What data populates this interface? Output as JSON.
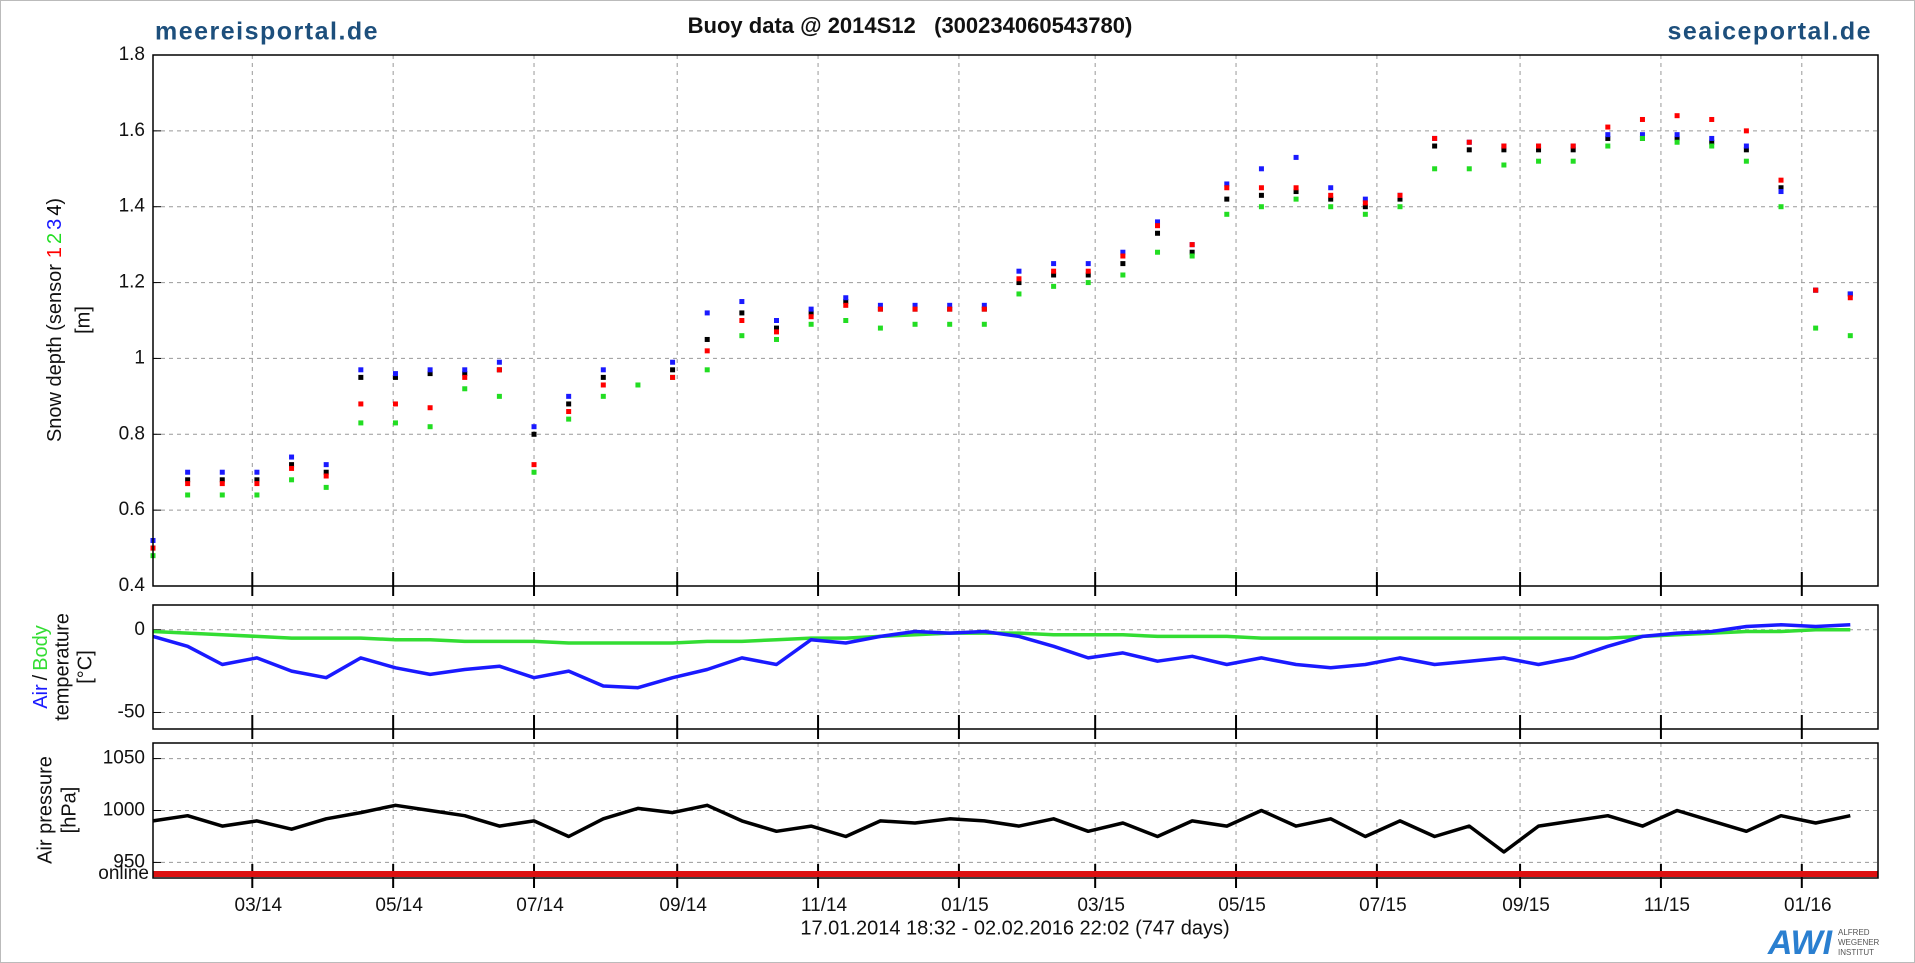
{
  "header": {
    "left_site": "meereisportal.de",
    "right_site": "seaiceportal.de",
    "title": "Buoy data @ 2014S12   (300234060543780)"
  },
  "chart_data": [
    {
      "type": "scatter",
      "ylabel": "Snow depth (sensor",
      "ylabel_close": ")",
      "yunit": "[m]",
      "x": [
        0,
        15,
        30,
        45,
        60,
        75,
        90,
        105,
        120,
        135,
        150,
        165,
        180,
        195,
        210,
        225,
        240,
        255,
        270,
        285,
        300,
        315,
        330,
        345,
        360,
        375,
        390,
        405,
        420,
        435,
        450,
        465,
        480,
        495,
        510,
        525,
        540,
        555,
        570,
        585,
        600,
        615,
        630,
        645,
        660,
        675,
        690,
        705,
        720,
        735
      ],
      "xlim": [
        0,
        747
      ],
      "xticks": [
        43,
        104,
        165,
        227,
        288,
        349,
        408,
        469,
        530,
        592,
        653,
        714
      ],
      "ylim": [
        0.4,
        1.8
      ],
      "yticks": [
        0.4,
        0.6,
        0.8,
        1,
        1.2,
        1.4,
        1.6,
        1.8
      ],
      "grid": true,
      "series": [
        {
          "name": "1",
          "color": "#ff0000",
          "values": [
            0.5,
            0.67,
            0.67,
            0.67,
            0.71,
            0.69,
            0.88,
            0.88,
            0.87,
            0.95,
            0.97,
            0.72,
            0.86,
            0.93,
            null,
            0.95,
            1.02,
            1.1,
            1.07,
            1.11,
            1.14,
            1.13,
            1.13,
            1.13,
            1.13,
            1.21,
            1.23,
            1.23,
            1.27,
            1.35,
            1.3,
            1.45,
            1.45,
            1.45,
            1.43,
            1.41,
            1.43,
            1.58,
            1.57,
            1.56,
            1.56,
            1.56,
            1.61,
            1.63,
            1.64,
            1.63,
            1.6,
            1.47,
            1.18,
            1.16
          ]
        },
        {
          "name": "2",
          "color": "#22dd22",
          "values": [
            0.48,
            0.64,
            0.64,
            0.64,
            0.68,
            0.66,
            0.83,
            0.83,
            0.82,
            0.92,
            0.9,
            0.7,
            0.84,
            0.9,
            0.93,
            0.95,
            0.97,
            1.06,
            1.05,
            1.09,
            1.1,
            1.08,
            1.09,
            1.09,
            1.09,
            1.17,
            1.19,
            1.2,
            1.22,
            1.28,
            1.27,
            1.38,
            1.4,
            1.42,
            1.4,
            1.38,
            1.4,
            1.5,
            1.5,
            1.51,
            1.52,
            1.52,
            1.56,
            1.58,
            1.57,
            1.56,
            1.52,
            1.4,
            1.08,
            1.06
          ]
        },
        {
          "name": "3",
          "color": "#1a1aff",
          "values": [
            0.52,
            0.7,
            0.7,
            0.7,
            0.74,
            0.72,
            0.97,
            0.96,
            0.97,
            0.97,
            0.99,
            0.82,
            0.9,
            0.97,
            null,
            0.99,
            1.12,
            1.15,
            1.1,
            1.13,
            1.16,
            1.14,
            1.14,
            1.14,
            1.14,
            1.23,
            1.25,
            1.25,
            1.28,
            1.36,
            1.3,
            1.46,
            1.5,
            1.53,
            1.45,
            1.42,
            1.43,
            1.58,
            1.57,
            1.56,
            1.56,
            1.56,
            1.59,
            1.59,
            1.59,
            1.58,
            1.56,
            1.44,
            1.18,
            1.17
          ]
        },
        {
          "name": "4",
          "color": "#000000",
          "values": [
            0.5,
            0.68,
            0.68,
            0.68,
            0.72,
            0.7,
            0.95,
            0.95,
            0.96,
            0.96,
            0.97,
            0.8,
            0.88,
            0.95,
            null,
            0.97,
            1.05,
            1.12,
            1.08,
            1.12,
            1.15,
            1.13,
            1.13,
            1.13,
            1.13,
            1.2,
            1.22,
            1.22,
            1.25,
            1.33,
            1.28,
            1.42,
            1.43,
            1.44,
            1.42,
            1.4,
            1.42,
            1.56,
            1.55,
            1.55,
            1.55,
            1.55,
            1.58,
            1.58,
            1.58,
            1.57,
            1.55,
            1.45,
            1.18,
            1.17
          ]
        }
      ]
    },
    {
      "type": "line",
      "ylabel": "temperature",
      "yunit": "[°C]",
      "separator": "/",
      "x": [
        0,
        15,
        30,
        45,
        60,
        75,
        90,
        105,
        120,
        135,
        150,
        165,
        180,
        195,
        210,
        225,
        240,
        255,
        270,
        285,
        300,
        315,
        330,
        345,
        360,
        375,
        390,
        405,
        420,
        435,
        450,
        465,
        480,
        495,
        510,
        525,
        540,
        555,
        570,
        585,
        600,
        615,
        630,
        645,
        660,
        675,
        690,
        705,
        720,
        735
      ],
      "xlim": [
        0,
        747
      ],
      "xticks": [
        43,
        104,
        165,
        227,
        288,
        349,
        408,
        469,
        530,
        592,
        653,
        714
      ],
      "ylim": [
        -60,
        15
      ],
      "yticks": [
        -50,
        0
      ],
      "grid": true,
      "series": [
        {
          "name": "Air",
          "color": "#1a1aff",
          "values": [
            -4,
            -10,
            -21,
            -17,
            -25,
            -29,
            -17,
            -23,
            -27,
            -24,
            -22,
            -29,
            -25,
            -34,
            -35,
            -29,
            -24,
            -17,
            -21,
            -6,
            -8,
            -4,
            -1,
            -2,
            -1,
            -4,
            -10,
            -17,
            -14,
            -19,
            -16,
            -21,
            -17,
            -21,
            -23,
            -21,
            -17,
            -21,
            -19,
            -17,
            -21,
            -17,
            -10,
            -4,
            -2,
            -1,
            2,
            3,
            2,
            3
          ]
        },
        {
          "name": "Body",
          "color": "#33dd33",
          "values": [
            -1,
            -2,
            -3,
            -4,
            -5,
            -5,
            -5,
            -6,
            -6,
            -7,
            -7,
            -7,
            -8,
            -8,
            -8,
            -8,
            -7,
            -7,
            -6,
            -5,
            -5,
            -4,
            -3,
            -2,
            -2,
            -2,
            -3,
            -3,
            -3,
            -4,
            -4,
            -4,
            -5,
            -5,
            -5,
            -5,
            -5,
            -5,
            -5,
            -5,
            -5,
            -5,
            -5,
            -4,
            -3,
            -2,
            -1,
            -1,
            0,
            0
          ]
        }
      ]
    },
    {
      "type": "line",
      "ylabel": "Air pressure",
      "yunit": "[hPa]",
      "x": [
        0,
        15,
        30,
        45,
        60,
        75,
        90,
        105,
        120,
        135,
        150,
        165,
        180,
        195,
        210,
        225,
        240,
        255,
        270,
        285,
        300,
        315,
        330,
        345,
        360,
        375,
        390,
        405,
        420,
        435,
        450,
        465,
        480,
        495,
        510,
        525,
        540,
        555,
        570,
        585,
        600,
        615,
        630,
        645,
        660,
        675,
        690,
        705,
        720,
        735
      ],
      "xlim": [
        0,
        747
      ],
      "xticks": [
        {
          "value": 43,
          "label": "03/14"
        },
        {
          "value": 104,
          "label": "05/14"
        },
        {
          "value": 165,
          "label": "07/14"
        },
        {
          "value": 227,
          "label": "09/14"
        },
        {
          "value": 288,
          "label": "11/14"
        },
        {
          "value": 349,
          "label": "01/15"
        },
        {
          "value": 408,
          "label": "03/15"
        },
        {
          "value": 469,
          "label": "05/15"
        },
        {
          "value": 530,
          "label": "07/15"
        },
        {
          "value": 592,
          "label": "09/15"
        },
        {
          "value": 653,
          "label": "11/15"
        },
        {
          "value": 714,
          "label": "01/16"
        }
      ],
      "ylim": [
        935,
        1065
      ],
      "yticks": [
        950,
        1000,
        1050
      ],
      "grid": true,
      "status": {
        "label": "online",
        "color": "#dd1111"
      },
      "series": [
        {
          "name": "Air pressure",
          "color": "#000000",
          "values": [
            990,
            995,
            985,
            990,
            982,
            992,
            998,
            1005,
            1000,
            995,
            985,
            990,
            975,
            992,
            1002,
            998,
            1005,
            990,
            980,
            985,
            975,
            990,
            988,
            992,
            990,
            985,
            992,
            980,
            988,
            975,
            990,
            985,
            1000,
            985,
            992,
            975,
            990,
            975,
            985,
            960,
            985,
            990,
            995,
            985,
            1000,
            990,
            980,
            995,
            988,
            995
          ]
        }
      ]
    }
  ],
  "footer": {
    "time_range": "17.01.2014 18:32 - 02.02.2016 22:02 (747 days)",
    "logo": "AWI",
    "institute": [
      "ALFRED",
      "WEGENER",
      "INSTITUT"
    ]
  }
}
